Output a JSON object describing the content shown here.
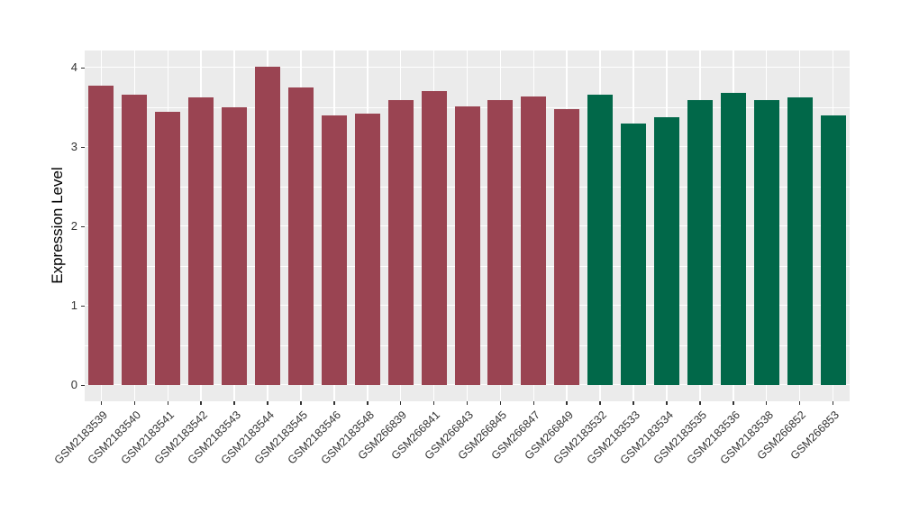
{
  "chart_data": {
    "type": "bar",
    "title": "",
    "xlabel": "",
    "ylabel": "Expression Level",
    "categories": [
      "GSM2183539",
      "GSM2183540",
      "GSM2183541",
      "GSM2183542",
      "GSM2183543",
      "GSM2183544",
      "GSM2183545",
      "GSM2183546",
      "GSM2183548",
      "GSM266839",
      "GSM266841",
      "GSM266843",
      "GSM266845",
      "GSM266847",
      "GSM266849",
      "GSM2183532",
      "GSM2183533",
      "GSM2183534",
      "GSM2183535",
      "GSM2183536",
      "GSM2183538",
      "GSM266852",
      "GSM266853"
    ],
    "values": [
      3.78,
      3.66,
      3.45,
      3.63,
      3.5,
      4.02,
      3.75,
      3.4,
      3.42,
      3.6,
      3.71,
      3.52,
      3.59,
      3.64,
      3.48,
      3.66,
      3.3,
      3.38,
      3.59,
      3.69,
      3.6,
      3.63,
      3.4
    ],
    "groups": [
      "A",
      "A",
      "A",
      "A",
      "A",
      "A",
      "A",
      "A",
      "A",
      "A",
      "A",
      "A",
      "A",
      "A",
      "A",
      "B",
      "B",
      "B",
      "B",
      "B",
      "B",
      "B",
      "B"
    ],
    "group_colors": {
      "A": "#9A4452",
      "B": "#016849"
    },
    "ytick_labels": [
      "0",
      "1",
      "2",
      "3",
      "4"
    ],
    "ytick_values": [
      0,
      1,
      2,
      3,
      4
    ],
    "yminor_values": [
      0.5,
      1.5,
      2.5,
      3.5
    ],
    "ylim": [
      -0.2,
      4.22
    ],
    "x_tick_rotation_deg": 45,
    "panel_background": "#EBEBEB",
    "grid_color": "#FFFFFF",
    "axis_text_color": "#333333",
    "legend": false,
    "grid": true
  }
}
